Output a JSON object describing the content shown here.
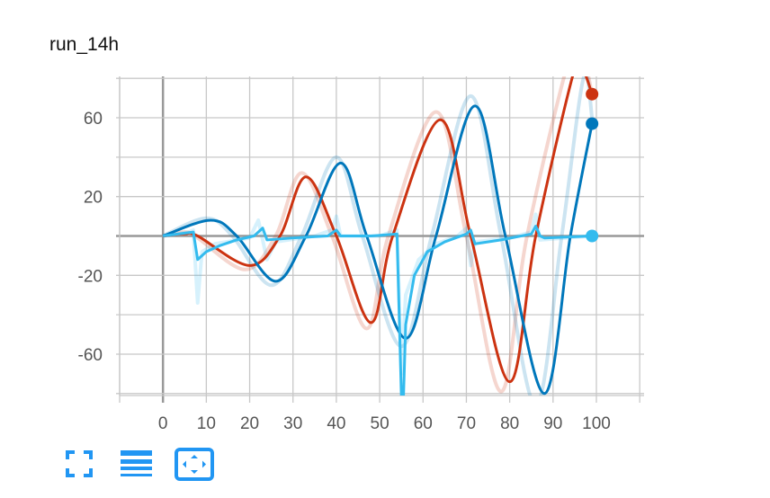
{
  "title": "run_14h",
  "colors": {
    "red": "#cc3311",
    "blue": "#0077bb",
    "cyan": "#33bbee",
    "grid": "#c8c8c8",
    "axis": "#999999",
    "icon": "#2196f3"
  },
  "toolbar": [
    {
      "icon": "fullscreen-icon"
    },
    {
      "icon": "list-icon"
    },
    {
      "icon": "fit-domain-icon"
    }
  ],
  "chart_data": {
    "type": "line",
    "title": "run_14h",
    "xlim": [
      -10,
      111
    ],
    "ylim": [
      -81,
      81
    ],
    "x_ticks": [
      0,
      10,
      20,
      30,
      40,
      50,
      60,
      70,
      80,
      90,
      100
    ],
    "y_ticks": [
      60,
      20,
      -20,
      -60
    ],
    "grid": true,
    "series": [
      {
        "color": "#cc3311",
        "raw": [
          [
            0,
            0
          ],
          [
            5,
            2
          ],
          [
            8,
            -1
          ],
          [
            19,
            -17
          ],
          [
            26,
            0
          ],
          [
            32,
            32
          ],
          [
            39,
            0
          ],
          [
            47,
            -47
          ],
          [
            52,
            0
          ],
          [
            63,
            63
          ],
          [
            70,
            0
          ],
          [
            78,
            -79
          ],
          [
            84,
            0
          ],
          [
            94,
            92
          ],
          [
            97,
            90
          ],
          [
            99,
            72
          ]
        ],
        "smoothed": [
          [
            0,
            0
          ],
          [
            5,
            1
          ],
          [
            8,
            0
          ],
          [
            20,
            -15
          ],
          [
            27,
            0
          ],
          [
            33,
            30
          ],
          [
            40,
            0
          ],
          [
            48,
            -44
          ],
          [
            53,
            0
          ],
          [
            64,
            59
          ],
          [
            71,
            0
          ],
          [
            80,
            -74
          ],
          [
            86,
            0
          ],
          [
            95,
            85
          ],
          [
            97,
            84
          ],
          [
            99,
            72
          ]
        ]
      },
      {
        "color": "#0077bb",
        "raw": [
          [
            0,
            0
          ],
          [
            10,
            9
          ],
          [
            16,
            0
          ],
          [
            25,
            -25
          ],
          [
            32,
            0
          ],
          [
            40,
            40
          ],
          [
            46,
            0
          ],
          [
            55,
            -56
          ],
          [
            62,
            0
          ],
          [
            71,
            71
          ],
          [
            78,
            0
          ],
          [
            86,
            -86
          ],
          [
            92,
            0
          ],
          [
            97,
            80
          ],
          [
            99,
            60
          ]
        ],
        "smoothed": [
          [
            0,
            0
          ],
          [
            11,
            8
          ],
          [
            17,
            0
          ],
          [
            26,
            -23
          ],
          [
            33,
            0
          ],
          [
            41,
            37
          ],
          [
            47,
            0
          ],
          [
            56,
            -52
          ],
          [
            63,
            0
          ],
          [
            72,
            66
          ],
          [
            79,
            0
          ],
          [
            88,
            -80
          ],
          [
            94,
            0
          ],
          [
            99,
            57
          ]
        ]
      },
      {
        "color": "#33bbee",
        "raw": [
          [
            0,
            0
          ],
          [
            6,
            2
          ],
          [
            7,
            3
          ],
          [
            8,
            -34
          ],
          [
            9,
            -8
          ],
          [
            12,
            -4
          ],
          [
            20,
            -1
          ],
          [
            22,
            8
          ],
          [
            23,
            -2
          ],
          [
            24,
            -12
          ],
          [
            26,
            -3
          ],
          [
            35,
            0
          ],
          [
            39,
            3
          ],
          [
            40,
            10
          ],
          [
            41,
            0
          ],
          [
            50,
            0
          ],
          [
            54,
            3
          ],
          [
            55,
            -70
          ],
          [
            56,
            -30
          ],
          [
            59,
            -12
          ],
          [
            63,
            -4
          ],
          [
            68,
            0
          ],
          [
            70,
            4
          ],
          [
            71,
            -15
          ],
          [
            72,
            -3
          ],
          [
            80,
            -1
          ],
          [
            85,
            2
          ],
          [
            86,
            11
          ],
          [
            87,
            -2
          ],
          [
            99,
            0
          ]
        ],
        "smoothed": [
          [
            0,
            0
          ],
          [
            7,
            2
          ],
          [
            8,
            -12
          ],
          [
            10,
            -8
          ],
          [
            13,
            -5
          ],
          [
            17,
            -2
          ],
          [
            21,
            0
          ],
          [
            23,
            4
          ],
          [
            24,
            -2
          ],
          [
            30,
            -1
          ],
          [
            38,
            0
          ],
          [
            40,
            3
          ],
          [
            41,
            0
          ],
          [
            48,
            0
          ],
          [
            54,
            1
          ],
          [
            55,
            -81
          ],
          [
            55.5,
            -81
          ],
          [
            56,
            -45
          ],
          [
            58,
            -20
          ],
          [
            61,
            -8
          ],
          [
            65,
            -3
          ],
          [
            70,
            1
          ],
          [
            71,
            3
          ],
          [
            72,
            -4
          ],
          [
            78,
            -2
          ],
          [
            85,
            1
          ],
          [
            86,
            5
          ],
          [
            87,
            0
          ],
          [
            88,
            -1
          ],
          [
            99,
            0
          ]
        ]
      }
    ]
  }
}
